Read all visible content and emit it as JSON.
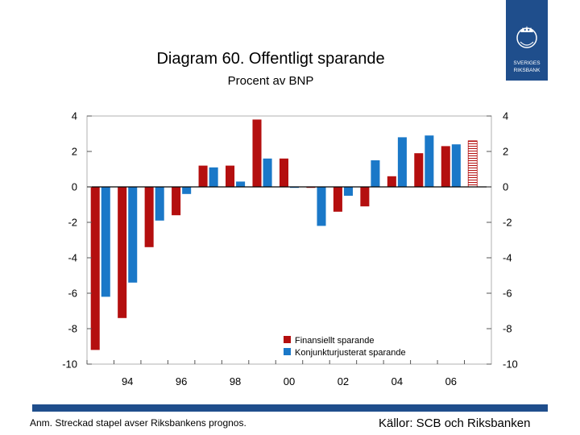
{
  "header": {
    "title": "Diagram 60. Offentligt sparande",
    "subtitle": "Procent av BNP"
  },
  "logo": {
    "line1": "SVERIGES",
    "line2": "RIKSBANK"
  },
  "footer": {
    "note": "Anm. Streckad stapel avser Riksbankens prognos.",
    "sources": "Källor: SCB och Riksbanken"
  },
  "colors": {
    "series1": "#b40f0f",
    "series2": "#1a78c8",
    "brand": "#1f4e8c"
  },
  "chart_data": {
    "type": "bar",
    "title": "Diagram 60. Offentligt sparande",
    "subtitle": "Procent av BNP",
    "ylim": [
      -10,
      4
    ],
    "yticks": [
      "4",
      "2",
      "0",
      "-2",
      "-4",
      "-6",
      "-8",
      "-10"
    ],
    "xtick_labels": [
      "94",
      "96",
      "98",
      "00",
      "02",
      "04",
      "06"
    ],
    "categories": [
      "1993",
      "1994",
      "1995",
      "1996",
      "1997",
      "1998",
      "1999",
      "2000",
      "2001",
      "2002",
      "2003",
      "2004",
      "2005",
      "2006",
      "2007"
    ],
    "series": [
      {
        "name": "Finansiellt sparande",
        "values": [
          -9.2,
          -7.4,
          -3.4,
          -1.6,
          1.2,
          1.2,
          3.8,
          1.6,
          0.0,
          -1.4,
          -1.1,
          0.6,
          1.9,
          2.3,
          2.6
        ]
      },
      {
        "name": "Konjunkturjusterat sparande",
        "values": [
          -6.2,
          -5.4,
          -1.9,
          -0.4,
          1.1,
          0.3,
          1.6,
          0.0,
          -2.2,
          -0.5,
          1.5,
          2.8,
          2.9,
          2.4,
          null
        ]
      }
    ],
    "forecast_categories": [
      "2007"
    ],
    "legend": [
      "Finansiellt sparande",
      "Konjunkturjusterat sparande"
    ]
  }
}
